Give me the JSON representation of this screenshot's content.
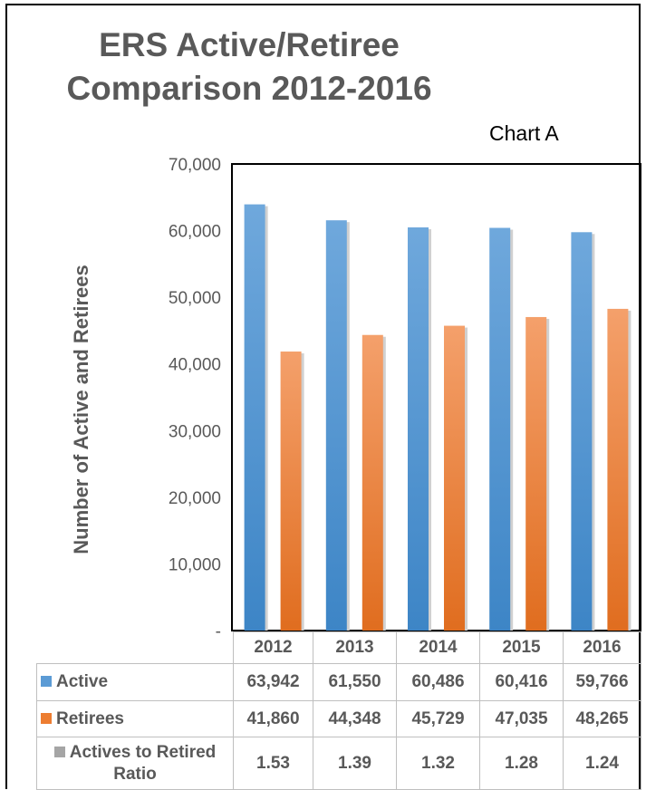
{
  "chart_data": {
    "type": "bar",
    "title": "ERS Active/Retiree Comparison 2012-2016",
    "subtitle": "Chart A",
    "ylabel": "Number of Active and Retirees",
    "xlabel": "",
    "ylim": [
      0,
      70000
    ],
    "yticks": [
      0,
      10000,
      20000,
      30000,
      40000,
      50000,
      60000,
      70000
    ],
    "ytick_labels": [
      "-",
      "10,000",
      "20,000",
      "30,000",
      "40,000",
      "50,000",
      "60,000",
      "70,000"
    ],
    "categories": [
      "2012",
      "2013",
      "2014",
      "2015",
      "2016"
    ],
    "series": [
      {
        "name": "Active",
        "color": "#5b9bd5",
        "values": [
          63942,
          61550,
          60486,
          60416,
          59766
        ],
        "labels": [
          "63,942",
          "61,550",
          "60,486",
          "60,416",
          "59,766"
        ]
      },
      {
        "name": "Retirees",
        "color": "#ed7d31",
        "values": [
          41860,
          44348,
          45729,
          47035,
          48265
        ],
        "labels": [
          "41,860",
          "44,348",
          "45,729",
          "47,035",
          "48,265"
        ]
      },
      {
        "name": "Actives to Retired Ratio",
        "color": "#a5a5a5",
        "values": [
          1.53,
          1.39,
          1.32,
          1.28,
          1.24
        ],
        "labels": [
          "1.53",
          "1.39",
          "1.32",
          "1.28",
          "1.24"
        ]
      }
    ],
    "grid": false,
    "legend": "data-table"
  }
}
